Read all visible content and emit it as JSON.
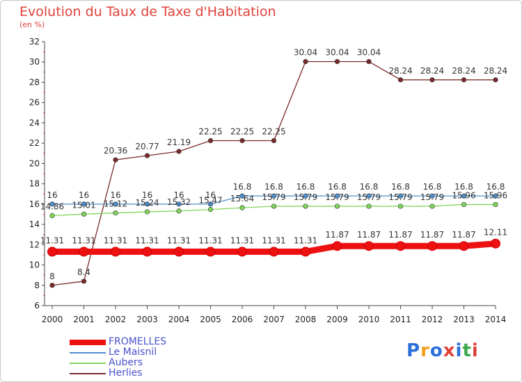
{
  "header": {
    "title": "Evolution du Taux de Taxe d'Habitation",
    "subtitle": "(en %)"
  },
  "brand": {
    "text": "Proxiti",
    "colors": [
      "#2b6fd8",
      "#f0a020",
      "#2b6fd8",
      "#e0413a",
      "#2b6fd8",
      "#3aa84a",
      "#e0413a"
    ]
  },
  "chart_data": {
    "type": "line",
    "title": "Evolution du Taux de Taxe d'Habitation",
    "ylabel": "(en %)",
    "xlabel": "",
    "x": [
      "2000",
      "2001",
      "2002",
      "2003",
      "2004",
      "2005",
      "2006",
      "2007",
      "2008",
      "2009",
      "2010",
      "2011",
      "2012",
      "2013",
      "2014"
    ],
    "ylim": [
      6,
      32
    ],
    "yticks": [
      6,
      8,
      10,
      12,
      14,
      16,
      18,
      20,
      22,
      24,
      26,
      28,
      30,
      32
    ],
    "grid": false,
    "legend_position": "bottom-left",
    "series": [
      {
        "name": "FROMELLES",
        "color": "#ee1111",
        "values": [
          11.31,
          11.31,
          11.31,
          11.31,
          11.31,
          11.31,
          11.31,
          11.31,
          11.31,
          11.87,
          11.87,
          11.87,
          11.87,
          11.87,
          12.11
        ],
        "labels": [
          "11.31",
          "11.31",
          "11.31",
          "11.31",
          "11.31",
          "11.31",
          "11.31",
          "11.31",
          "11.31",
          "11.87",
          "11.87",
          "11.87",
          "11.87",
          "11.87",
          "12.11"
        ]
      },
      {
        "name": "Le Maisnil",
        "color": "#4d8fcc",
        "values": [
          16,
          16,
          16,
          16,
          16,
          16,
          16.8,
          16.8,
          16.8,
          16.8,
          16.8,
          16.8,
          16.8,
          16.8,
          16.8
        ],
        "labels": [
          "16",
          "16",
          "16",
          "16",
          "16",
          "16",
          "16.8",
          "16.8",
          "16.8",
          "16.8",
          "16.8",
          "16.8",
          "16.8",
          "16.8",
          "16.8"
        ]
      },
      {
        "name": "Aubers",
        "color": "#7fd65a",
        "values": [
          14.86,
          15.01,
          15.12,
          15.24,
          15.32,
          15.47,
          15.64,
          15.79,
          15.79,
          15.79,
          15.79,
          15.79,
          15.79,
          15.96,
          15.96
        ],
        "labels": [
          "14.86",
          "15.01",
          "15.12",
          "15.24",
          "15.32",
          "15.47",
          "15.64",
          "15.79",
          "15.79",
          "15.79",
          "15.79",
          "15.79",
          "15.79",
          "15.96",
          "15.96"
        ]
      },
      {
        "name": "Herlies",
        "color": "#7a2a2a",
        "values": [
          8,
          8.4,
          20.36,
          20.77,
          21.19,
          22.25,
          22.25,
          22.25,
          30.04,
          30.04,
          30.04,
          28.24,
          28.24,
          28.24,
          28.24
        ],
        "labels": [
          "8",
          "8.4",
          "20.36",
          "20.77",
          "21.19",
          "22.25",
          "22.25",
          "22.25",
          "30.04",
          "30.04",
          "30.04",
          "28.24",
          "28.24",
          "28.24",
          "28.24"
        ]
      }
    ]
  }
}
